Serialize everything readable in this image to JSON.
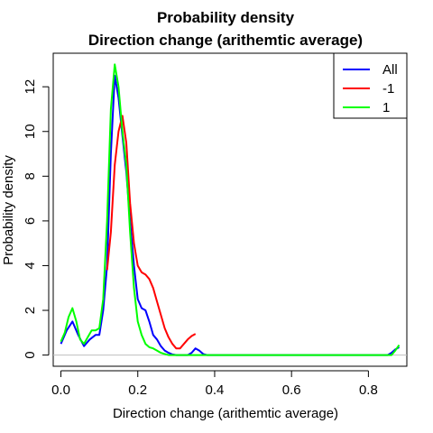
{
  "chart_data": {
    "type": "line",
    "title": "Probability density",
    "subtitle": "Direction change (arithemtic average)",
    "xlabel": "Direction change (arithemtic average)",
    "ylabel": "Probability density",
    "xlim": [
      -0.02,
      0.9
    ],
    "ylim": [
      -0.5,
      13.5
    ],
    "x_ticks": [
      0.0,
      0.2,
      0.4,
      0.6,
      0.8
    ],
    "x_tick_labels": [
      "0.0",
      "0.2",
      "0.4",
      "0.6",
      "0.8"
    ],
    "y_ticks": [
      0,
      2,
      4,
      6,
      8,
      10,
      12
    ],
    "y_tick_labels": [
      "0",
      "2",
      "4",
      "6",
      "8",
      "10",
      "12"
    ],
    "baseline": 0,
    "grid": false,
    "legend_position": "top-right",
    "series": [
      {
        "name": "All",
        "color": "#0000ff",
        "points": [
          [
            0.0,
            0.5
          ],
          [
            0.015,
            1.1
          ],
          [
            0.03,
            1.5
          ],
          [
            0.045,
            0.9
          ],
          [
            0.06,
            0.4
          ],
          [
            0.075,
            0.7
          ],
          [
            0.09,
            0.9
          ],
          [
            0.1,
            0.9
          ],
          [
            0.11,
            2.0
          ],
          [
            0.12,
            4.0
          ],
          [
            0.13,
            9.0
          ],
          [
            0.14,
            12.5
          ],
          [
            0.15,
            11.5
          ],
          [
            0.16,
            9.8
          ],
          [
            0.17,
            8.2
          ],
          [
            0.18,
            6.0
          ],
          [
            0.19,
            4.0
          ],
          [
            0.2,
            2.5
          ],
          [
            0.21,
            2.1
          ],
          [
            0.22,
            2.0
          ],
          [
            0.23,
            1.5
          ],
          [
            0.24,
            0.9
          ],
          [
            0.25,
            0.7
          ],
          [
            0.26,
            0.4
          ],
          [
            0.27,
            0.2
          ],
          [
            0.28,
            0.1
          ],
          [
            0.29,
            0.03
          ],
          [
            0.3,
            0.0
          ],
          [
            0.31,
            0.0
          ],
          [
            0.33,
            0.0
          ],
          [
            0.34,
            0.1
          ],
          [
            0.35,
            0.3
          ],
          [
            0.36,
            0.2
          ],
          [
            0.37,
            0.05
          ],
          [
            0.38,
            0.0
          ],
          [
            0.5,
            0.0
          ],
          [
            0.7,
            0.0
          ],
          [
            0.85,
            0.0
          ],
          [
            0.86,
            0.1
          ],
          [
            0.87,
            0.25
          ],
          [
            0.88,
            0.35
          ]
        ]
      },
      {
        "name": "-1",
        "color": "#ff0000",
        "points": [
          [
            0.12,
            3.8
          ],
          [
            0.13,
            5.5
          ],
          [
            0.14,
            8.5
          ],
          [
            0.15,
            10.0
          ],
          [
            0.16,
            10.7
          ],
          [
            0.17,
            9.5
          ],
          [
            0.18,
            6.8
          ],
          [
            0.19,
            5.0
          ],
          [
            0.2,
            4.0
          ],
          [
            0.21,
            3.7
          ],
          [
            0.22,
            3.6
          ],
          [
            0.23,
            3.4
          ],
          [
            0.24,
            3.0
          ],
          [
            0.25,
            2.4
          ],
          [
            0.26,
            1.8
          ],
          [
            0.27,
            1.2
          ],
          [
            0.28,
            0.8
          ],
          [
            0.29,
            0.5
          ],
          [
            0.3,
            0.3
          ],
          [
            0.31,
            0.3
          ],
          [
            0.32,
            0.5
          ],
          [
            0.33,
            0.7
          ],
          [
            0.34,
            0.85
          ],
          [
            0.35,
            0.95
          ]
        ]
      },
      {
        "name": "1",
        "color": "#00ff00",
        "points": [
          [
            0.0,
            0.6
          ],
          [
            0.01,
            1.0
          ],
          [
            0.02,
            1.7
          ],
          [
            0.03,
            2.1
          ],
          [
            0.04,
            1.5
          ],
          [
            0.05,
            0.7
          ],
          [
            0.06,
            0.5
          ],
          [
            0.07,
            0.8
          ],
          [
            0.08,
            1.1
          ],
          [
            0.09,
            1.1
          ],
          [
            0.1,
            1.2
          ],
          [
            0.11,
            2.5
          ],
          [
            0.12,
            6.0
          ],
          [
            0.13,
            11.0
          ],
          [
            0.14,
            13.0
          ],
          [
            0.15,
            12.0
          ],
          [
            0.16,
            10.0
          ],
          [
            0.17,
            8.5
          ],
          [
            0.18,
            5.5
          ],
          [
            0.19,
            3.0
          ],
          [
            0.2,
            1.5
          ],
          [
            0.21,
            0.9
          ],
          [
            0.22,
            0.5
          ],
          [
            0.23,
            0.35
          ],
          [
            0.24,
            0.3
          ],
          [
            0.25,
            0.2
          ],
          [
            0.26,
            0.1
          ],
          [
            0.27,
            0.05
          ],
          [
            0.28,
            0.0
          ],
          [
            0.3,
            0.0
          ],
          [
            0.4,
            0.0
          ],
          [
            0.6,
            0.0
          ],
          [
            0.8,
            0.0
          ],
          [
            0.86,
            0.0
          ],
          [
            0.87,
            0.2
          ],
          [
            0.88,
            0.45
          ]
        ]
      }
    ]
  }
}
